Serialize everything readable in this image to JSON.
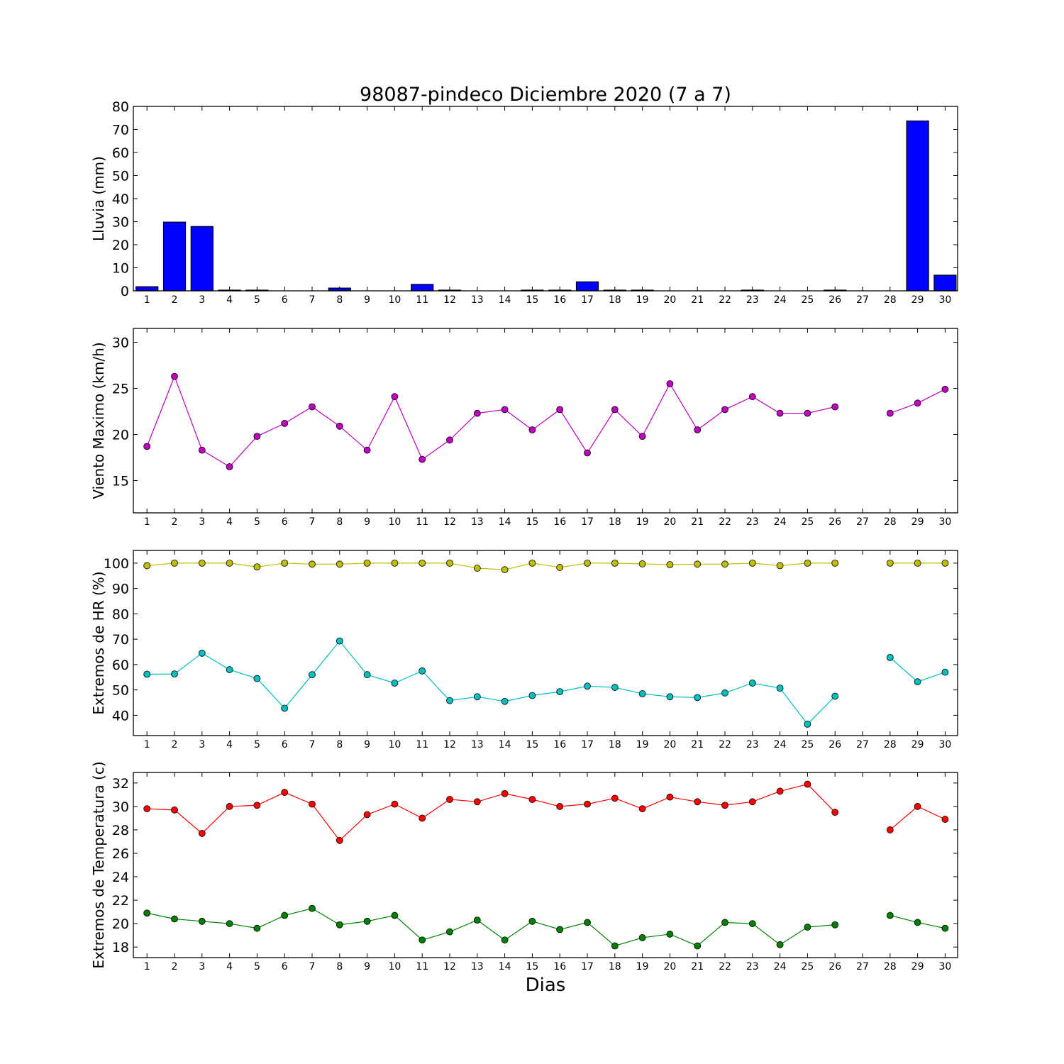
{
  "chart_data": {
    "type": "multi-panel",
    "title": "98087-pindeco Diciembre 2020  (7 a 7)",
    "xlabel": "Dias",
    "x_ticks": [
      "1",
      "2",
      "3",
      "4",
      "5",
      "6",
      "7",
      "8",
      "9",
      "10",
      "11",
      "12",
      "13",
      "14",
      "15",
      "16",
      "17",
      "18",
      "19",
      "20",
      "21",
      "22",
      "23",
      "24",
      "25",
      "26",
      "27",
      "28",
      "29",
      "30"
    ],
    "panels": [
      {
        "id": "lluvia",
        "type": "bar",
        "ylabel": "Lluvia (mm)",
        "ylim": [
          0,
          80
        ],
        "yticks": [
          0,
          10,
          20,
          30,
          40,
          50,
          60,
          70,
          80
        ],
        "series": [
          {
            "color": "#0000ff",
            "values": [
              1.8,
              29.8,
              27.9,
              0.3,
              0.3,
              0,
              0,
              1.2,
              0,
              0,
              2.8,
              0.3,
              0,
              0,
              0.3,
              0.3,
              3.9,
              0.3,
              0.3,
              0,
              0,
              0,
              0.3,
              0,
              0,
              0.3,
              null,
              0,
              73.7,
              6.8
            ]
          }
        ]
      },
      {
        "id": "viento",
        "type": "line",
        "ylabel": "Viento Maximo (km/h)",
        "ylim": [
          11.5,
          31.5
        ],
        "yticks": [
          15,
          20,
          25,
          30
        ],
        "series": [
          {
            "color": "#bf00bf",
            "values": [
              18.7,
              26.3,
              18.3,
              16.5,
              19.8,
              21.2,
              23.0,
              20.9,
              18.3,
              24.1,
              17.3,
              19.4,
              22.3,
              22.7,
              20.5,
              22.7,
              18.0,
              22.7,
              19.8,
              25.5,
              20.5,
              22.7,
              24.1,
              22.3,
              22.3,
              23.0,
              null,
              22.3,
              23.4,
              24.9
            ]
          }
        ]
      },
      {
        "id": "hr",
        "type": "line",
        "ylabel": "Extremos de HR (%)",
        "ylim": [
          32,
          105
        ],
        "yticks": [
          40,
          50,
          60,
          70,
          80,
          90,
          100
        ],
        "series": [
          {
            "color": "#bfbf00",
            "values": [
              99,
              100,
              100,
              100,
              98.5,
              100,
              99.6,
              99.6,
              100,
              100,
              100,
              100,
              98,
              97.4,
              100,
              98.3,
              100,
              100,
              99.7,
              99.4,
              99.6,
              99.6,
              100,
              99,
              100,
              100,
              null,
              100,
              100,
              100
            ]
          },
          {
            "color": "#00bfbf",
            "values": [
              56.2,
              56.3,
              64.5,
              58,
              54.5,
              42.8,
              56,
              69.3,
              56,
              52.7,
              57.5,
              45.8,
              47.3,
              45.5,
              47.8,
              49.3,
              51.5,
              51,
              48.5,
              47.3,
              47,
              48.8,
              52.7,
              50.7,
              36.5,
              47.5,
              null,
              62.8,
              53.2,
              57
            ]
          }
        ]
      },
      {
        "id": "temperatura",
        "type": "line",
        "ylabel": "Extremos de Temperatura (c)",
        "ylim": [
          17.1,
          32.9
        ],
        "yticks": [
          18,
          20,
          22,
          24,
          26,
          28,
          30,
          32
        ],
        "series": [
          {
            "color": "#ff0000",
            "values": [
              29.8,
              29.7,
              27.7,
              30.0,
              30.1,
              31.2,
              30.2,
              27.1,
              29.3,
              30.2,
              29.0,
              30.6,
              30.4,
              31.1,
              30.6,
              30.0,
              30.2,
              30.7,
              29.8,
              30.8,
              30.4,
              30.1,
              30.4,
              31.3,
              31.9,
              29.5,
              null,
              28.0,
              30.0,
              28.9
            ]
          },
          {
            "color": "#008000",
            "values": [
              20.9,
              20.4,
              20.2,
              20.0,
              19.6,
              20.7,
              21.3,
              19.9,
              20.2,
              20.7,
              18.6,
              19.3,
              20.3,
              18.6,
              20.2,
              19.5,
              20.1,
              18.1,
              18.8,
              19.1,
              18.1,
              20.1,
              20.0,
              18.2,
              19.7,
              19.9,
              null,
              20.7,
              20.1,
              19.6
            ]
          }
        ]
      }
    ]
  }
}
